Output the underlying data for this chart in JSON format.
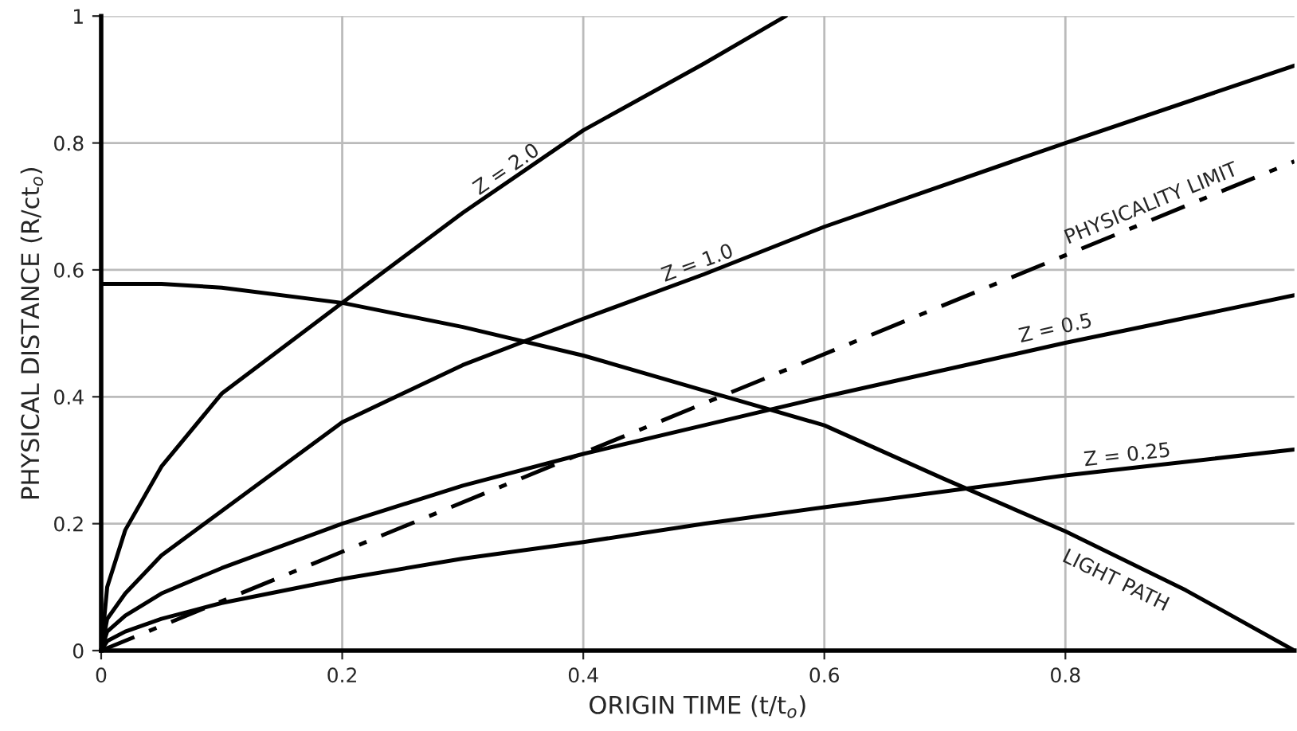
{
  "chart_data": {
    "type": "line",
    "xlabel": "ORIGIN TIME (t/t$_{o}$)",
    "ylabel": "PHYSICAL DISTANCE (R/ct$_{o}$)",
    "xlim": [
      0,
      0.99
    ],
    "ylim": [
      0,
      1
    ],
    "xticks": [
      0,
      0.2,
      0.4,
      0.6,
      0.8
    ],
    "yticks": [
      0,
      0.2,
      0.4,
      0.6,
      0.8,
      1
    ],
    "grid": true,
    "legend": false,
    "marker": "none",
    "series": [
      {
        "name": "Z = 2.0",
        "color": "#000000",
        "x": [
          0,
          0.005,
          0.02,
          0.05,
          0.1,
          0.2,
          0.3,
          0.4,
          0.5,
          0.568
        ],
        "values": [
          0,
          0.1,
          0.19,
          0.29,
          0.405,
          0.548,
          0.69,
          0.82,
          0.925,
          1.0
        ]
      },
      {
        "name": "Z = 1.0",
        "color": "#000000",
        "x": [
          0,
          0.005,
          0.02,
          0.05,
          0.1,
          0.2,
          0.3,
          0.4,
          0.5,
          0.6,
          0.8,
          0.99
        ],
        "values": [
          0,
          0.05,
          0.09,
          0.15,
          0.22,
          0.36,
          0.45,
          0.523,
          0.593,
          0.668,
          0.8,
          0.922
        ]
      },
      {
        "name": "PHYSICALITY LIMIT",
        "color": "#000000",
        "line_style": "dashdot",
        "x": [
          0,
          0.99
        ],
        "values": [
          0,
          0.771
        ]
      },
      {
        "name": "Z = 0.5",
        "color": "#000000",
        "x": [
          0,
          0.005,
          0.02,
          0.05,
          0.1,
          0.2,
          0.3,
          0.4,
          0.5,
          0.6,
          0.8,
          0.99
        ],
        "values": [
          0,
          0.03,
          0.055,
          0.09,
          0.13,
          0.2,
          0.26,
          0.31,
          0.355,
          0.4,
          0.485,
          0.56
        ]
      },
      {
        "name": "Z = 0.25",
        "color": "#000000",
        "x": [
          0,
          0.005,
          0.02,
          0.05,
          0.1,
          0.2,
          0.3,
          0.4,
          0.5,
          0.6,
          0.8,
          0.99
        ],
        "values": [
          0,
          0.015,
          0.03,
          0.05,
          0.075,
          0.113,
          0.145,
          0.171,
          0.2,
          0.226,
          0.276,
          0.317
        ]
      },
      {
        "name": "LIGHT PATH",
        "color": "#000000",
        "x": [
          0,
          0.05,
          0.1,
          0.2,
          0.3,
          0.4,
          0.5,
          0.6,
          0.7,
          0.8,
          0.9,
          0.99
        ],
        "values": [
          0.578,
          0.578,
          0.572,
          0.548,
          0.51,
          0.465,
          0.41,
          0.355,
          0.27,
          0.188,
          0.095,
          0
        ]
      }
    ]
  }
}
